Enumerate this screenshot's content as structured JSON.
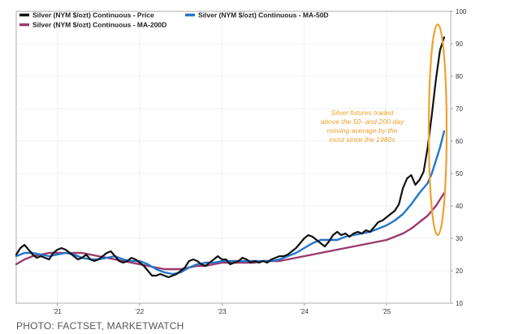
{
  "chart_data": {
    "type": "line",
    "title": "",
    "xlabel": "",
    "ylabel": "",
    "ylim": [
      10,
      100
    ],
    "yticks": [
      10,
      20,
      30,
      40,
      50,
      60,
      70,
      80,
      90,
      100
    ],
    "xlim": [
      2020.5,
      2025.78
    ],
    "xticks": [
      {
        "label": "'21",
        "value": 2021.0
      },
      {
        "label": "'22",
        "value": 2022.0
      },
      {
        "label": "'23",
        "value": 2023.0
      },
      {
        "label": "'24",
        "value": 2024.0
      },
      {
        "label": "'25",
        "value": 2025.0
      }
    ],
    "grid": true,
    "y_axis_side": "right",
    "legend_position": "top-left",
    "series": [
      {
        "name": "Silver (NYM $/ozt) Continuous - Price",
        "color": "#111111",
        "x": [
          2020.5,
          2020.55,
          2020.6,
          2020.65,
          2020.7,
          2020.75,
          2020.8,
          2020.85,
          2020.9,
          2020.95,
          2021.0,
          2021.05,
          2021.1,
          2021.15,
          2021.2,
          2021.25,
          2021.3,
          2021.35,
          2021.4,
          2021.45,
          2021.5,
          2021.55,
          2021.6,
          2021.65,
          2021.7,
          2021.75,
          2021.8,
          2021.85,
          2021.9,
          2021.95,
          2022.0,
          2022.05,
          2022.1,
          2022.15,
          2022.2,
          2022.25,
          2022.3,
          2022.35,
          2022.4,
          2022.45,
          2022.5,
          2022.55,
          2022.6,
          2022.65,
          2022.7,
          2022.75,
          2022.8,
          2022.85,
          2022.9,
          2022.95,
          2023.0,
          2023.05,
          2023.1,
          2023.15,
          2023.2,
          2023.25,
          2023.3,
          2023.35,
          2023.4,
          2023.45,
          2023.5,
          2023.55,
          2023.6,
          2023.65,
          2023.7,
          2023.75,
          2023.8,
          2023.85,
          2023.9,
          2023.95,
          2024.0,
          2024.05,
          2024.1,
          2024.15,
          2024.2,
          2024.25,
          2024.3,
          2024.35,
          2024.4,
          2024.45,
          2024.5,
          2024.55,
          2024.6,
          2024.65,
          2024.7,
          2024.75,
          2024.8,
          2024.85,
          2024.9,
          2024.95,
          2025.0,
          2025.05,
          2025.1,
          2025.15,
          2025.2,
          2025.25,
          2025.3,
          2025.35,
          2025.4,
          2025.45,
          2025.5,
          2025.55,
          2025.6,
          2025.65,
          2025.7
        ],
        "values": [
          25,
          27,
          28,
          26.5,
          25,
          24,
          24.5,
          24,
          23.5,
          25.5,
          26.5,
          27,
          26.5,
          25.5,
          24.5,
          23.5,
          24,
          25,
          23.5,
          23,
          23.5,
          24.5,
          25.5,
          26,
          24.5,
          23,
          22.5,
          23,
          24,
          23.5,
          22.5,
          21.5,
          20,
          18.5,
          18.5,
          19,
          18.5,
          18,
          18.5,
          19,
          20,
          21,
          23,
          23.5,
          23,
          22,
          21.5,
          22.5,
          23.5,
          24.5,
          23.5,
          23.5,
          22,
          22.5,
          23,
          24,
          23.5,
          22.5,
          23,
          22.5,
          23,
          22.5,
          23.5,
          24,
          24.5,
          24.5,
          25,
          26,
          27,
          28.5,
          30,
          31,
          30.5,
          29.5,
          28.5,
          27.5,
          29,
          31,
          32,
          31,
          31.5,
          30.5,
          31.5,
          32,
          31.5,
          32.5,
          32,
          33.5,
          35,
          35.5,
          36.5,
          37.5,
          38.5,
          40.5,
          45.5,
          48.5,
          49.5,
          46.5,
          48,
          50.5,
          58,
          68,
          79,
          88,
          92
        ]
      },
      {
        "name": "Silver (NYM $/ozt) Continuous - MA-50D",
        "color": "#2277cc",
        "x": [
          2020.5,
          2020.6,
          2020.7,
          2020.8,
          2020.9,
          2021.0,
          2021.1,
          2021.2,
          2021.3,
          2021.4,
          2021.5,
          2021.6,
          2021.7,
          2021.8,
          2021.9,
          2022.0,
          2022.1,
          2022.2,
          2022.3,
          2022.4,
          2022.5,
          2022.6,
          2022.7,
          2022.8,
          2022.9,
          2023.0,
          2023.1,
          2023.2,
          2023.3,
          2023.4,
          2023.5,
          2023.6,
          2023.7,
          2023.8,
          2023.9,
          2024.0,
          2024.1,
          2024.2,
          2024.3,
          2024.4,
          2024.5,
          2024.6,
          2024.7,
          2024.8,
          2024.9,
          2025.0,
          2025.1,
          2025.2,
          2025.3,
          2025.4,
          2025.5,
          2025.55,
          2025.6,
          2025.65,
          2025.7
        ],
        "values": [
          24.5,
          25.5,
          25.5,
          25,
          24.5,
          25,
          25.5,
          25,
          24,
          23.5,
          23.5,
          24,
          24.5,
          23.5,
          23,
          23,
          22,
          20.5,
          19.5,
          19,
          19.5,
          21,
          22,
          22.5,
          22.5,
          23,
          23,
          23,
          23,
          23,
          23,
          23,
          23.5,
          24.5,
          25.5,
          27,
          28.5,
          29.5,
          29.5,
          29.5,
          30.5,
          31,
          31.5,
          32,
          33,
          34,
          35.5,
          37.5,
          40.5,
          44,
          47,
          50,
          54,
          58,
          63
        ]
      },
      {
        "name": "Silver (NYM $/ozt) Continuous - MA-200D",
        "color": "#9a3a6e",
        "x": [
          2020.5,
          2020.6,
          2020.7,
          2020.8,
          2020.9,
          2021.0,
          2021.1,
          2021.2,
          2021.3,
          2021.4,
          2021.5,
          2021.6,
          2021.7,
          2021.8,
          2021.9,
          2022.0,
          2022.1,
          2022.2,
          2022.3,
          2022.4,
          2022.5,
          2022.6,
          2022.7,
          2022.8,
          2022.9,
          2023.0,
          2023.1,
          2023.2,
          2023.3,
          2023.4,
          2023.5,
          2023.6,
          2023.7,
          2023.8,
          2023.9,
          2024.0,
          2024.1,
          2024.2,
          2024.3,
          2024.4,
          2024.5,
          2024.6,
          2024.7,
          2024.8,
          2024.9,
          2025.0,
          2025.1,
          2025.2,
          2025.3,
          2025.4,
          2025.5,
          2025.6,
          2025.7
        ],
        "values": [
          22,
          23.5,
          24.5,
          25,
          25.5,
          25.5,
          25.5,
          25.5,
          25.5,
          25,
          24.5,
          24,
          23.5,
          23,
          22.5,
          22,
          21.5,
          21,
          20.5,
          20.5,
          20.5,
          21,
          21.5,
          21.5,
          22,
          22.5,
          22.5,
          22.5,
          22.5,
          22.5,
          23,
          23,
          23,
          23.5,
          24,
          24.5,
          25,
          25.5,
          26,
          26.5,
          27,
          27.5,
          28,
          28.5,
          29,
          29.5,
          30.5,
          31.5,
          33,
          35,
          37,
          40,
          44
        ]
      }
    ],
    "annotations": [
      {
        "lines": [
          "Silver futures traded",
          "above the 50- and 200-day",
          "moving average by the",
          "most since the 1980s"
        ],
        "color": "#f0a030",
        "target": "recent price surge (2025), circled in orange"
      }
    ]
  },
  "credit": "PHOTO: FACTSET, MARKETWATCH"
}
